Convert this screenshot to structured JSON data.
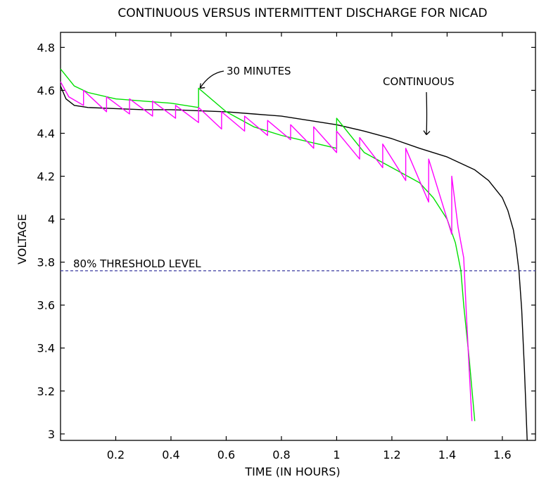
{
  "chart_data": {
    "type": "line",
    "title": "CONTINUOUS VERSUS INTERMITTENT DISCHARGE FOR NICAD",
    "xlabel": "TIME (IN HOURS)",
    "ylabel": "VOLTAGE",
    "xlim": [
      0,
      1.72
    ],
    "ylim": [
      2.97,
      4.87
    ],
    "x_ticks": [
      "0.2",
      "0.4",
      "0.6",
      "0.8",
      "1",
      "1.2",
      "1.4",
      "1.6"
    ],
    "y_ticks": [
      "3",
      "3.2",
      "3.4",
      "3.6",
      "3.8",
      "4",
      "4.2",
      "4.4",
      "4.6",
      "4.8"
    ],
    "grid": false,
    "threshold": {
      "label": "80% THRESHOLD LEVEL",
      "value": 3.76
    },
    "annotations": [
      {
        "text": "30 MINUTES",
        "arrow_to": [
          0.5,
          4.6
        ]
      },
      {
        "text": "CONTINUOUS",
        "arrow_to": [
          1.32,
          4.38
        ]
      }
    ],
    "series": [
      {
        "color": "#000000",
        "x": [
          0,
          0.02,
          0.05,
          0.1,
          0.2,
          0.3,
          0.4,
          0.5,
          0.6,
          0.7,
          0.8,
          0.9,
          1.0,
          1.1,
          1.2,
          1.3,
          1.4,
          1.5,
          1.55,
          1.6,
          1.62,
          1.64,
          1.65,
          1.66,
          1.67,
          1.68,
          1.69
        ],
        "y": [
          4.62,
          4.56,
          4.53,
          4.52,
          4.515,
          4.51,
          4.51,
          4.505,
          4.5,
          4.49,
          4.48,
          4.46,
          4.44,
          4.41,
          4.375,
          4.33,
          4.29,
          4.23,
          4.18,
          4.1,
          4.04,
          3.95,
          3.87,
          3.76,
          3.58,
          3.3,
          2.97
        ]
      },
      {
        "color": "#00e000",
        "x": [
          0,
          0.05,
          0.1,
          0.2,
          0.3,
          0.4,
          0.5,
          0.5,
          0.6,
          0.7,
          0.8,
          0.9,
          1.0,
          1.0,
          1.1,
          1.2,
          1.3,
          1.35,
          1.4,
          1.43,
          1.45,
          1.46,
          1.48,
          1.5
        ],
        "y": [
          4.7,
          4.62,
          4.59,
          4.56,
          4.55,
          4.54,
          4.52,
          4.61,
          4.5,
          4.43,
          4.39,
          4.36,
          4.33,
          4.47,
          4.31,
          4.24,
          4.17,
          4.1,
          4.0,
          3.89,
          3.76,
          3.6,
          3.35,
          3.06
        ]
      },
      {
        "color": "#ff00ff",
        "x": [
          0,
          0.03,
          0.0833,
          0.0833,
          0.1667,
          0.1667,
          0.25,
          0.25,
          0.3333,
          0.3333,
          0.4167,
          0.4167,
          0.5,
          0.5,
          0.5833,
          0.5833,
          0.6667,
          0.6667,
          0.75,
          0.75,
          0.8333,
          0.8333,
          0.9167,
          0.9167,
          1.0,
          1.0,
          1.0833,
          1.0833,
          1.1667,
          1.1667,
          1.25,
          1.25,
          1.3333,
          1.3333,
          1.4167,
          1.4167,
          1.44,
          1.46,
          1.47,
          1.48,
          1.49
        ],
        "y": [
          4.64,
          4.57,
          4.53,
          4.6,
          4.5,
          4.57,
          4.49,
          4.56,
          4.48,
          4.55,
          4.47,
          4.53,
          4.45,
          4.52,
          4.42,
          4.5,
          4.41,
          4.48,
          4.39,
          4.46,
          4.37,
          4.44,
          4.33,
          4.43,
          4.31,
          4.41,
          4.28,
          4.38,
          4.24,
          4.35,
          4.18,
          4.33,
          4.08,
          4.28,
          3.93,
          4.2,
          3.96,
          3.82,
          3.55,
          3.3,
          3.06
        ]
      }
    ]
  }
}
